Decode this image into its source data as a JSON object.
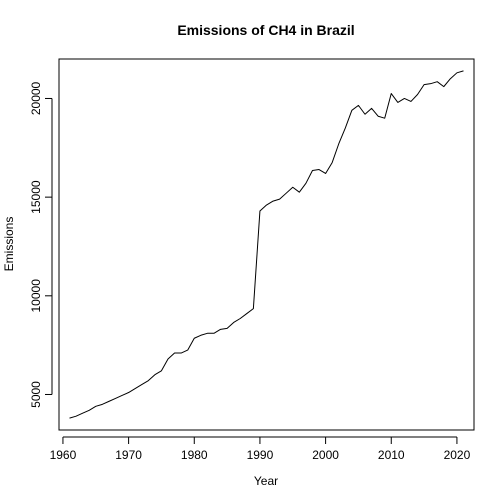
{
  "chart_data": {
    "type": "line",
    "title": "Emissions of CH4 in Brazil",
    "xlabel": "Year",
    "ylabel": "Emissions",
    "xlim": [
      1959.4,
      2022.6
    ],
    "ylim": [
      3200,
      22000
    ],
    "xticks": [
      1960,
      1970,
      1980,
      1990,
      2000,
      2010,
      2020
    ],
    "yticks": [
      5000,
      10000,
      15000,
      20000
    ],
    "grid": false,
    "legend": "none",
    "line_color": "#000000",
    "series": [
      {
        "x": [
          1961,
          1962,
          1963,
          1964,
          1965,
          1966,
          1967,
          1968,
          1969,
          1970,
          1971,
          1972,
          1973,
          1974,
          1975,
          1976,
          1977,
          1978,
          1979,
          1980,
          1981,
          1982,
          1983,
          1984,
          1985,
          1986,
          1987,
          1988,
          1989,
          1990,
          1991,
          1992,
          1993,
          1994,
          1995,
          1996,
          1997,
          1998,
          1999,
          2000,
          2001,
          2002,
          2003,
          2004,
          2005,
          2006,
          2007,
          2008,
          2009,
          2010,
          2011,
          2012,
          2013,
          2014,
          2015,
          2016,
          2017,
          2018,
          2019,
          2020,
          2021
        ],
        "y": [
          3800,
          3900,
          4050,
          4200,
          4400,
          4500,
          4650,
          4800,
          4950,
          5100,
          5300,
          5500,
          5700,
          6000,
          6200,
          6800,
          7100,
          7100,
          7250,
          7850,
          8000,
          8100,
          8100,
          8300,
          8350,
          8650,
          8850,
          9100,
          9350,
          14300,
          14600,
          14800,
          14900,
          15200,
          15500,
          15250,
          15700,
          16350,
          16400,
          16200,
          16750,
          17700,
          18500,
          19400,
          19650,
          19200,
          19500,
          19100,
          19000,
          20250,
          19800,
          20000,
          19850,
          20200,
          20700,
          20750,
          20850,
          20600,
          21000,
          21300,
          21400
        ]
      }
    ]
  }
}
